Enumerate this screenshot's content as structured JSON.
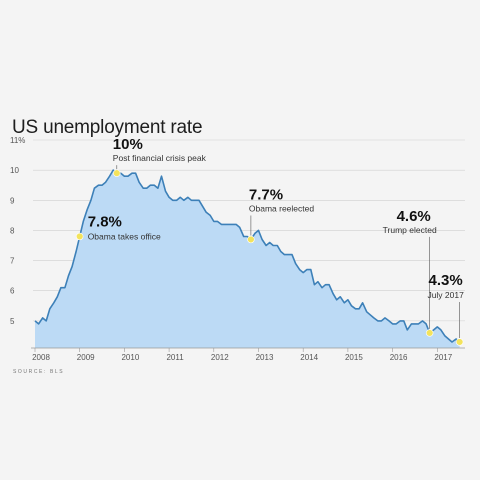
{
  "chart_data": {
    "type": "area",
    "title": "US unemployment rate",
    "source": "SOURCE: BLS",
    "xlabel": "",
    "ylabel": "",
    "xlim": [
      2008.0,
      2017.62
    ],
    "ylim": [
      4.1,
      11
    ],
    "y_ticks": [
      "11%",
      "10",
      "9",
      "8",
      "7",
      "6",
      "5"
    ],
    "y_tick_values": [
      11,
      10,
      9,
      8,
      7,
      6,
      5
    ],
    "x_ticks": [
      "2008",
      "2009",
      "2010",
      "2011",
      "2012",
      "2013",
      "2014",
      "2015",
      "2016",
      "2017"
    ],
    "x_tick_values": [
      2008,
      2009,
      2010,
      2011,
      2012,
      2013,
      2014,
      2015,
      2016,
      2017
    ],
    "grid": true,
    "colors": {
      "line": "#3d80b8",
      "fill": "#bcdaf5",
      "marker": "#f3e35c",
      "grid": "#cfcfcf"
    },
    "series": [
      {
        "values": [
          [
            2008.0,
            5.0
          ],
          [
            2008.08,
            4.9
          ],
          [
            2008.17,
            5.1
          ],
          [
            2008.25,
            5.0
          ],
          [
            2008.33,
            5.4
          ],
          [
            2008.42,
            5.6
          ],
          [
            2008.5,
            5.8
          ],
          [
            2008.58,
            6.1
          ],
          [
            2008.67,
            6.1
          ],
          [
            2008.75,
            6.5
          ],
          [
            2008.83,
            6.8
          ],
          [
            2008.92,
            7.3
          ],
          [
            2009.0,
            7.8
          ],
          [
            2009.08,
            8.3
          ],
          [
            2009.17,
            8.7
          ],
          [
            2009.25,
            9.0
          ],
          [
            2009.33,
            9.4
          ],
          [
            2009.42,
            9.5
          ],
          [
            2009.5,
            9.5
          ],
          [
            2009.58,
            9.6
          ],
          [
            2009.67,
            9.8
          ],
          [
            2009.75,
            10.0
          ],
          [
            2009.83,
            9.9
          ],
          [
            2009.92,
            9.9
          ],
          [
            2010.0,
            9.8
          ],
          [
            2010.08,
            9.8
          ],
          [
            2010.17,
            9.9
          ],
          [
            2010.25,
            9.9
          ],
          [
            2010.33,
            9.6
          ],
          [
            2010.42,
            9.4
          ],
          [
            2010.5,
            9.4
          ],
          [
            2010.58,
            9.5
          ],
          [
            2010.67,
            9.5
          ],
          [
            2010.75,
            9.4
          ],
          [
            2010.83,
            9.8
          ],
          [
            2010.92,
            9.3
          ],
          [
            2011.0,
            9.1
          ],
          [
            2011.08,
            9.0
          ],
          [
            2011.17,
            9.0
          ],
          [
            2011.25,
            9.1
          ],
          [
            2011.33,
            9.0
          ],
          [
            2011.42,
            9.1
          ],
          [
            2011.5,
            9.0
          ],
          [
            2011.58,
            9.0
          ],
          [
            2011.67,
            9.0
          ],
          [
            2011.75,
            8.8
          ],
          [
            2011.83,
            8.6
          ],
          [
            2011.92,
            8.5
          ],
          [
            2012.0,
            8.3
          ],
          [
            2012.08,
            8.3
          ],
          [
            2012.17,
            8.2
          ],
          [
            2012.25,
            8.2
          ],
          [
            2012.33,
            8.2
          ],
          [
            2012.42,
            8.2
          ],
          [
            2012.5,
            8.2
          ],
          [
            2012.58,
            8.1
          ],
          [
            2012.67,
            7.8
          ],
          [
            2012.75,
            7.8
          ],
          [
            2012.83,
            7.7
          ],
          [
            2012.92,
            7.9
          ],
          [
            2013.0,
            8.0
          ],
          [
            2013.08,
            7.7
          ],
          [
            2013.17,
            7.5
          ],
          [
            2013.25,
            7.6
          ],
          [
            2013.33,
            7.5
          ],
          [
            2013.42,
            7.5
          ],
          [
            2013.5,
            7.3
          ],
          [
            2013.58,
            7.2
          ],
          [
            2013.67,
            7.2
          ],
          [
            2013.75,
            7.2
          ],
          [
            2013.83,
            6.9
          ],
          [
            2013.92,
            6.7
          ],
          [
            2014.0,
            6.6
          ],
          [
            2014.08,
            6.7
          ],
          [
            2014.17,
            6.7
          ],
          [
            2014.25,
            6.2
          ],
          [
            2014.33,
            6.3
          ],
          [
            2014.42,
            6.1
          ],
          [
            2014.5,
            6.2
          ],
          [
            2014.58,
            6.2
          ],
          [
            2014.67,
            5.9
          ],
          [
            2014.75,
            5.7
          ],
          [
            2014.83,
            5.8
          ],
          [
            2014.92,
            5.6
          ],
          [
            2015.0,
            5.7
          ],
          [
            2015.08,
            5.5
          ],
          [
            2015.17,
            5.4
          ],
          [
            2015.25,
            5.4
          ],
          [
            2015.33,
            5.6
          ],
          [
            2015.42,
            5.3
          ],
          [
            2015.5,
            5.2
          ],
          [
            2015.58,
            5.1
          ],
          [
            2015.67,
            5.0
          ],
          [
            2015.75,
            5.0
          ],
          [
            2015.83,
            5.1
          ],
          [
            2015.92,
            5.0
          ],
          [
            2016.0,
            4.9
          ],
          [
            2016.08,
            4.9
          ],
          [
            2016.17,
            5.0
          ],
          [
            2016.25,
            5.0
          ],
          [
            2016.33,
            4.7
          ],
          [
            2016.42,
            4.9
          ],
          [
            2016.5,
            4.9
          ],
          [
            2016.58,
            4.9
          ],
          [
            2016.67,
            5.0
          ],
          [
            2016.75,
            4.9
          ],
          [
            2016.83,
            4.6
          ],
          [
            2016.92,
            4.7
          ],
          [
            2017.0,
            4.8
          ],
          [
            2017.08,
            4.7
          ],
          [
            2017.17,
            4.5
          ],
          [
            2017.25,
            4.4
          ],
          [
            2017.33,
            4.3
          ],
          [
            2017.42,
            4.4
          ],
          [
            2017.5,
            4.3
          ]
        ]
      }
    ],
    "annotations": [
      {
        "x": 2009.0,
        "y": 7.8,
        "value": "7.8%",
        "label": "Obama takes office"
      },
      {
        "x": 2009.83,
        "y": 9.9,
        "value": "10%",
        "label": "Post financial crisis peak"
      },
      {
        "x": 2012.83,
        "y": 7.7,
        "value": "7.7%",
        "label": "Obama reelected"
      },
      {
        "x": 2016.83,
        "y": 4.6,
        "value": "4.6%",
        "label": "Trump elected"
      },
      {
        "x": 2017.5,
        "y": 4.3,
        "value": "4.3%",
        "label": "July 2017"
      }
    ]
  }
}
